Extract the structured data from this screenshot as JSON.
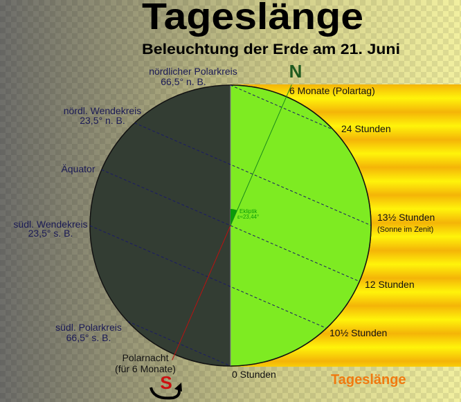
{
  "title": "Tageslänge",
  "subtitle": "Beleuchtung der Erde am 21. Juni",
  "axial_tilt_deg": 23.44,
  "north_label": "N",
  "south_label": "S",
  "ecliptic": {
    "label": "Ekliptik",
    "value": "ε≈23,44°"
  },
  "latitudes": [
    {
      "lat": 66.5,
      "name": "nördlicher Polarkreis",
      "sub": "66,5° n. B."
    },
    {
      "lat": 23.5,
      "name": "nördl. Wendekreis",
      "sub": "23,5° n. B."
    },
    {
      "lat": 0,
      "name": "Äquator",
      "sub": ""
    },
    {
      "lat": -23.5,
      "name": "südl. Wendekreis",
      "sub": "23,5° s. B."
    },
    {
      "lat": -66.5,
      "name": "südl. Polarkreis",
      "sub": "66,5° s. B."
    }
  ],
  "day_lengths": {
    "polar_day": "6 Monate (Polartag)",
    "arctic": "24 Stunden",
    "tropic_n": "13½ Stunden",
    "zenith": "(Sonne im Zenit)",
    "equator": "12 Stunden",
    "tropic_s": "10½ Stunden",
    "pole_s": "0 Stunden"
  },
  "polar_night": {
    "line1": "Polarnacht",
    "line2": "(für 6 Monate)"
  },
  "legend_label": "Tageslänge",
  "colors": {
    "night": "#333d33",
    "day": "#7eeb22",
    "sun_band_light": "#fff40a",
    "sun_band_dark": "#f4b408",
    "north": "#1f5a1f",
    "south": "#cc1111",
    "equator_text": "#2222cc",
    "legend": "#f07a10",
    "ecliptic": "#0a9a0a"
  }
}
